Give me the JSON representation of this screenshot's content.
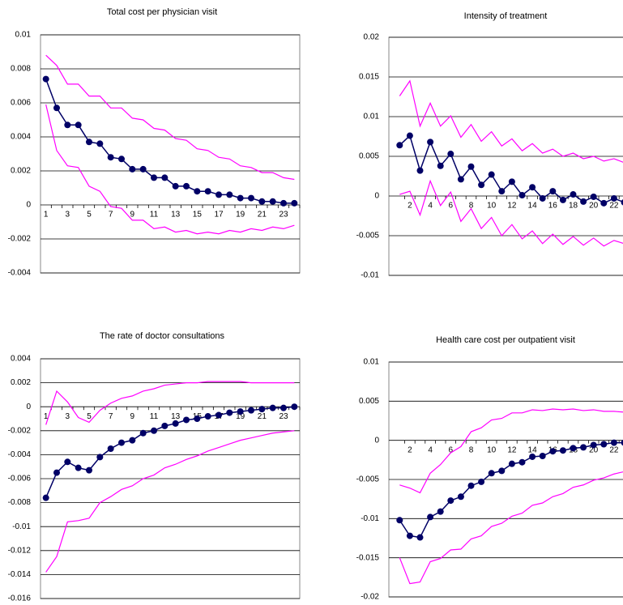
{
  "chart_data": [
    {
      "type": "line",
      "title": "Total cost per physician visit",
      "categories": [
        "1",
        null,
        "3",
        null,
        "5",
        null,
        "7",
        null,
        "9",
        null,
        "11",
        null,
        "13",
        null,
        "15",
        null,
        "17",
        null,
        "19",
        null,
        "21",
        null,
        "23",
        null
      ],
      "ylim": [
        -0.004,
        0.01
      ],
      "yticks": [
        -0.004,
        -0.002,
        0,
        0.002,
        0.004,
        0.006,
        0.008,
        0.01
      ],
      "grid": true,
      "series": [
        {
          "color": "#000066",
          "marker": "circle",
          "values": [
            0.0074,
            0.0057,
            0.0047,
            0.0047,
            0.0037,
            0.0036,
            0.0028,
            0.0027,
            0.0021,
            0.0021,
            0.0016,
            0.0016,
            0.0011,
            0.0011,
            0.0008,
            0.0008,
            0.0006,
            0.0006,
            0.0004,
            0.0004,
            0.0002,
            0.0002,
            0.0001,
            0.0001
          ]
        },
        {
          "color": "#ff00ff",
          "values": [
            0.0088,
            0.0082,
            0.0071,
            0.0071,
            0.0064,
            0.0064,
            0.0057,
            0.0057,
            0.0051,
            0.005,
            0.0045,
            0.0044,
            0.0039,
            0.0038,
            0.0033,
            0.0032,
            0.0028,
            0.0027,
            0.0023,
            0.0022,
            0.0019,
            0.0019,
            0.0016,
            0.0015
          ]
        },
        {
          "color": "#ff00ff",
          "values": [
            0.0059,
            0.0032,
            0.0023,
            0.0022,
            0.0011,
            0.0008,
            -0.0001,
            -0.0002,
            -0.0009,
            -0.0009,
            -0.0014,
            -0.0013,
            -0.0016,
            -0.0015,
            -0.0017,
            -0.0016,
            -0.0017,
            -0.0015,
            -0.0016,
            -0.0014,
            -0.0015,
            -0.0013,
            -0.0014,
            -0.0012
          ]
        }
      ]
    },
    {
      "type": "line",
      "title": "Intensity of treatment",
      "categories": [
        null,
        "2",
        null,
        "4",
        null,
        "6",
        null,
        "8",
        null,
        "10",
        null,
        "12",
        null,
        "14",
        null,
        "16",
        null,
        "18",
        null,
        "20",
        null,
        "22",
        null
      ],
      "ylim": [
        -0.01,
        0.02
      ],
      "yticks": [
        -0.01,
        -0.005,
        0,
        0.005,
        0.01,
        0.015,
        0.02
      ],
      "grid": true,
      "series": [
        {
          "color": "#000066",
          "marker": "circle",
          "values": [
            0.0064,
            0.0076,
            0.0032,
            0.0068,
            0.0038,
            0.0053,
            0.0021,
            0.0037,
            0.0014,
            0.0027,
            0.0006,
            0.0018,
            0.0001,
            0.0011,
            -0.0003,
            0.0006,
            -0.0005,
            0.0002,
            -0.0007,
            -0.0001,
            -0.0009,
            -0.0003,
            -0.0008
          ]
        },
        {
          "color": "#ff00ff",
          "values": [
            0.0126,
            0.0145,
            0.0088,
            0.0117,
            0.0088,
            0.0101,
            0.0074,
            0.009,
            0.0069,
            0.0081,
            0.0063,
            0.0072,
            0.0057,
            0.0066,
            0.0054,
            0.0059,
            0.005,
            0.0054,
            0.0047,
            0.005,
            0.0044,
            0.0047,
            0.0042
          ]
        },
        {
          "color": "#ff00ff",
          "values": [
            0.0002,
            0.0006,
            -0.0024,
            0.0019,
            -0.0012,
            0.0005,
            -0.0032,
            -0.0016,
            -0.0041,
            -0.0027,
            -0.005,
            -0.0036,
            -0.0054,
            -0.0044,
            -0.006,
            -0.0048,
            -0.0061,
            -0.0051,
            -0.0062,
            -0.0053,
            -0.0063,
            -0.0056,
            -0.006
          ]
        }
      ]
    },
    {
      "type": "line",
      "title": "The rate of doctor consultations",
      "categories": [
        "1",
        null,
        "3",
        null,
        "5",
        null,
        "7",
        null,
        "9",
        null,
        "11",
        null,
        "13",
        null,
        "15",
        null,
        "17",
        null,
        "19",
        null,
        "21",
        null,
        "23",
        null
      ],
      "ylim": [
        -0.016,
        0.004
      ],
      "yticks": [
        -0.016,
        -0.014,
        -0.012,
        -0.01,
        -0.008,
        -0.006,
        -0.004,
        -0.002,
        0,
        0.002,
        0.004
      ],
      "grid": true,
      "series": [
        {
          "color": "#000066",
          "marker": "circle",
          "values": [
            -0.0076,
            -0.0055,
            -0.0046,
            -0.0051,
            -0.0053,
            -0.0042,
            -0.0035,
            -0.003,
            -0.0028,
            -0.0022,
            -0.002,
            -0.0016,
            -0.0014,
            -0.0011,
            -0.001,
            -0.0008,
            -0.0007,
            -0.0005,
            -0.0004,
            -0.0003,
            -0.0002,
            -0.0001,
            -0.0001,
            0
          ]
        },
        {
          "color": "#ff00ff",
          "values": [
            -0.0015,
            0.0013,
            0.0004,
            -0.0009,
            -0.0013,
            -0.0003,
            0.0003,
            0.0007,
            0.0009,
            0.0013,
            0.0015,
            0.0018,
            0.0019,
            0.002,
            0.002,
            0.0021,
            0.0021,
            0.0021,
            0.0021,
            0.002,
            0.002,
            0.002,
            0.002,
            0.002
          ]
        },
        {
          "color": "#ff00ff",
          "values": [
            -0.0138,
            -0.0125,
            -0.0096,
            -0.0095,
            -0.0093,
            -0.008,
            -0.0075,
            -0.0069,
            -0.0066,
            -0.006,
            -0.0057,
            -0.0051,
            -0.0048,
            -0.0044,
            -0.0041,
            -0.0037,
            -0.0034,
            -0.0031,
            -0.0028,
            -0.0026,
            -0.0024,
            -0.0022,
            -0.0021,
            -0.002
          ]
        }
      ]
    },
    {
      "type": "line",
      "title": "Health care cost per outpatient visit",
      "categories": [
        null,
        "2",
        null,
        "4",
        null,
        "6",
        null,
        "8",
        null,
        "10",
        null,
        "12",
        null,
        "14",
        null,
        "16",
        null,
        "18",
        null,
        "20",
        null,
        "22",
        null
      ],
      "ylim": [
        -0.02,
        0.01
      ],
      "yticks": [
        -0.02,
        -0.015,
        -0.01,
        -0.005,
        0,
        0.005,
        0.01
      ],
      "grid": true,
      "series": [
        {
          "color": "#000066",
          "marker": "circle",
          "values": [
            -0.0102,
            -0.0122,
            -0.0124,
            -0.0098,
            -0.0091,
            -0.0077,
            -0.0072,
            -0.0058,
            -0.0053,
            -0.0042,
            -0.0039,
            -0.003,
            -0.0028,
            -0.0021,
            -0.002,
            -0.0014,
            -0.0013,
            -0.001,
            -0.0009,
            -0.0006,
            -0.0005,
            -0.0003,
            -0.0003
          ]
        },
        {
          "color": "#ff00ff",
          "values": [
            -0.0057,
            -0.0061,
            -0.0067,
            -0.0042,
            -0.0031,
            -0.0016,
            -0.0008,
            0.0011,
            0.0016,
            0.0026,
            0.0028,
            0.0035,
            0.0035,
            0.0039,
            0.0038,
            0.004,
            0.0039,
            0.004,
            0.0038,
            0.0039,
            0.0037,
            0.0037,
            0.0036
          ]
        },
        {
          "color": "#ff00ff",
          "values": [
            -0.015,
            -0.0183,
            -0.0181,
            -0.0155,
            -0.0151,
            -0.014,
            -0.0139,
            -0.0126,
            -0.0122,
            -0.011,
            -0.0106,
            -0.0097,
            -0.0093,
            -0.0083,
            -0.008,
            -0.0072,
            -0.0068,
            -0.006,
            -0.0057,
            -0.0051,
            -0.0048,
            -0.0043,
            -0.004
          ]
        }
      ]
    }
  ]
}
